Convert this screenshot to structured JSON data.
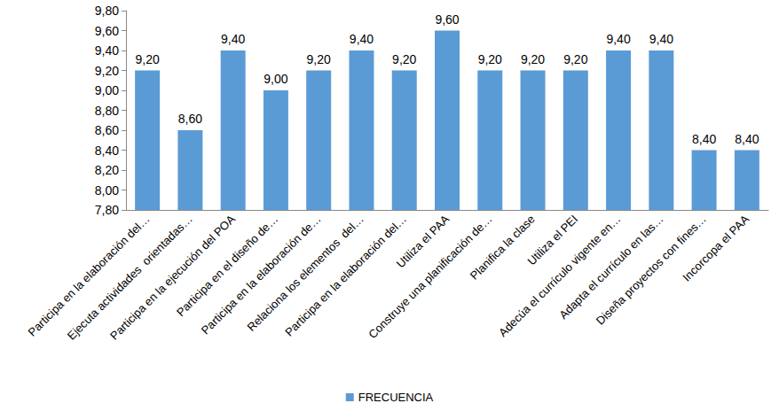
{
  "chart_data": {
    "type": "bar",
    "categories": [
      "Participa en la elaboración del…",
      "Ejecuta actividades  orientadas…",
      "Participa en la ejecución del POA",
      "Participa en el diseño de…",
      "Participa en la elaboración de…",
      "Relaciona los elementos  del…",
      "Participa en la elaboración del…",
      "Utiliza el PAA",
      "Construye una planificación de…",
      "Planifica la clase",
      "Utiliza el PEI",
      "Adecúa el currículo vigente en…",
      "Adapta el currículo en las…",
      "Diseña proyectos con fines…",
      "Incorcopa el PAA"
    ],
    "series": [
      {
        "name": "FRECUENCIA",
        "color": "#5b9bd5",
        "values": [
          9.2,
          8.6,
          9.4,
          9.0,
          9.2,
          9.4,
          9.2,
          9.6,
          9.2,
          9.2,
          9.2,
          9.4,
          9.4,
          8.4,
          8.4
        ],
        "value_labels": [
          "9,20",
          "8,60",
          "9,40",
          "9,00",
          "9,20",
          "9,40",
          "9,20",
          "9,60",
          "9,20",
          "9,20",
          "9,20",
          "9,40",
          "9,40",
          "8,40",
          "8,40"
        ]
      }
    ],
    "ylim": [
      7.8,
      9.8
    ],
    "yticks": [
      {
        "value": 7.8,
        "label": "7,80"
      },
      {
        "value": 8.0,
        "label": "8,00"
      },
      {
        "value": 8.2,
        "label": "8,20"
      },
      {
        "value": 8.4,
        "label": "8,40"
      },
      {
        "value": 8.6,
        "label": "8,60"
      },
      {
        "value": 8.8,
        "label": "8,80"
      },
      {
        "value": 9.0,
        "label": "9,00"
      },
      {
        "value": 9.2,
        "label": "9,20"
      },
      {
        "value": 9.4,
        "label": "9,40"
      },
      {
        "value": 9.6,
        "label": "9,60"
      },
      {
        "value": 9.8,
        "label": "9,80"
      }
    ],
    "grid": false,
    "legend": "bottom",
    "data_labels": true
  }
}
